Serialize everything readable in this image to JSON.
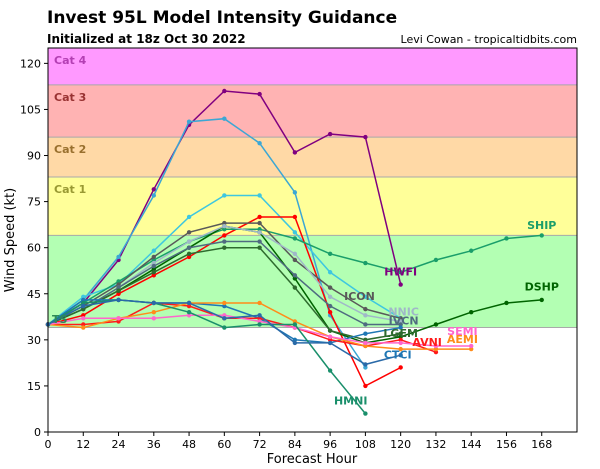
{
  "header": {
    "title": "Invest 95L Model Intensity Guidance",
    "subtitle": "Initialized at 18z Oct 30 2022",
    "credit": "Levi Cowan - tropicaltidbits.com"
  },
  "chart_data": {
    "type": "line",
    "title": "Invest 95L Model Intensity Guidance",
    "subtitle": "Initialized at 18z Oct 30 2022",
    "xlabel": "Forecast Hour",
    "ylabel": "Wind Speed (kt)",
    "xlim": [
      0,
      180
    ],
    "ylim": [
      0,
      125
    ],
    "xticks": [
      0,
      12,
      24,
      36,
      48,
      60,
      72,
      84,
      96,
      108,
      120,
      132,
      144,
      156,
      168
    ],
    "yticks": [
      0,
      15,
      30,
      45,
      60,
      75,
      90,
      105,
      120
    ],
    "grid": false,
    "bands": [
      {
        "name": "",
        "from": 0,
        "to": 34,
        "color": "#ffffff"
      },
      {
        "name": "",
        "from": 34,
        "to": 64,
        "color": "#b3ffb3"
      },
      {
        "name": "Cat 1",
        "from": 64,
        "to": 83,
        "color": "#ffff99",
        "label_color": "#999933"
      },
      {
        "name": "Cat 2",
        "from": 83,
        "to": 96,
        "color": "#ffd9a6",
        "label_color": "#99702e"
      },
      {
        "name": "Cat 3",
        "from": 96,
        "to": 113,
        "color": "#ffb3b3",
        "label_color": "#993333"
      },
      {
        "name": "Cat 4",
        "from": 113,
        "to": 125,
        "color": "#ff99ff",
        "label_color": "#b33fb3"
      }
    ],
    "series": [
      {
        "name": "HWFI",
        "color": "#800080",
        "label_pos": [
          120,
          51
        ],
        "x": [
          0,
          12,
          24,
          36,
          48,
          60,
          72,
          84,
          96,
          108,
          120
        ],
        "y": [
          35,
          42,
          56,
          79,
          100,
          111,
          110,
          91,
          97,
          96,
          48
        ]
      },
      {
        "name": "",
        "color": "#3ca7d4",
        "x": [
          0,
          12,
          24,
          36,
          48,
          60,
          72,
          84,
          96,
          108
        ],
        "y": [
          35,
          43,
          57,
          77,
          101,
          102,
          94,
          78,
          38,
          21
        ]
      },
      {
        "name": "",
        "color": "#3ec7e0",
        "x": [
          0,
          12,
          24,
          36,
          48,
          60,
          72,
          84,
          96,
          108,
          120
        ],
        "y": [
          35,
          44,
          48,
          59,
          70,
          77,
          77,
          65,
          52,
          44,
          37
        ]
      },
      {
        "name": "",
        "color": "#ff0000",
        "x": [
          0,
          12,
          24,
          36,
          48,
          60,
          72,
          84,
          96,
          108,
          120
        ],
        "y": [
          35,
          38,
          45,
          51,
          57,
          64,
          70,
          70,
          39,
          15,
          21
        ]
      },
      {
        "name": "SHIP",
        "color": "#1a9e6a",
        "label_pos": [
          168,
          66
        ],
        "x": [
          0,
          12,
          24,
          36,
          48,
          60,
          72,
          84,
          96,
          108,
          120,
          132,
          144,
          156,
          168
        ],
        "y": [
          35,
          42,
          49,
          56,
          62,
          66,
          66,
          63,
          58,
          55,
          52,
          56,
          59,
          63,
          64
        ]
      },
      {
        "name": "DSHP",
        "color": "#006400",
        "label_pos": [
          168,
          46
        ],
        "x": [
          0,
          12,
          24,
          36,
          48,
          60,
          72,
          84,
          96,
          108,
          120,
          132,
          144,
          156,
          168
        ],
        "y": [
          35,
          40,
          46,
          53,
          60,
          67,
          65,
          50,
          33,
          29,
          31,
          35,
          39,
          42,
          43
        ]
      },
      {
        "name": "ICON",
        "color": "#595959",
        "label_pos": [
          106,
          43
        ],
        "x": [
          0,
          12,
          24,
          36,
          48,
          60,
          72,
          84,
          96,
          108,
          120
        ],
        "y": [
          35,
          41,
          48,
          57,
          65,
          68,
          68,
          56,
          47,
          40,
          37
        ]
      },
      {
        "name": "NNIC",
        "color": "#a0b8c8",
        "label_pos": [
          121,
          38
        ],
        "x": [
          0,
          12,
          24,
          36,
          48,
          60,
          72,
          84,
          96,
          108,
          120
        ],
        "y": [
          35,
          40,
          47,
          55,
          62,
          67,
          65,
          58,
          44,
          38,
          36
        ]
      },
      {
        "name": "IVCN",
        "color": "#4f6b80",
        "label_pos": [
          121,
          35
        ],
        "x": [
          0,
          12,
          24,
          36,
          48,
          60,
          72,
          84,
          96,
          108,
          120
        ],
        "y": [
          35,
          40,
          47,
          54,
          60,
          62,
          62,
          51,
          41,
          35,
          35
        ]
      },
      {
        "name": "LGEM",
        "color": "#2e6b2e",
        "label_pos": [
          120,
          31
        ],
        "x": [
          0,
          12,
          24,
          36,
          48,
          60,
          72,
          84,
          96,
          108,
          120
        ],
        "y": [
          35,
          40,
          46,
          52,
          58,
          60,
          60,
          47,
          33,
          30,
          32
        ]
      },
      {
        "name": "CTCI",
        "color": "#1f77b4",
        "label_pos": [
          119,
          24
        ],
        "x": [
          0,
          12,
          24,
          36,
          48,
          60,
          72,
          84,
          96,
          108,
          120
        ],
        "y": [
          35,
          43,
          43,
          42,
          42,
          41,
          37,
          30,
          29,
          32,
          34
        ]
      },
      {
        "name": "AVNI",
        "color": "#ff1a1a",
        "label_pos": [
          129,
          28
        ],
        "x": [
          0,
          12,
          24,
          36,
          48,
          60,
          72,
          84,
          96,
          108,
          120,
          132
        ],
        "y": [
          35,
          35,
          36,
          42,
          41,
          37,
          37,
          34,
          30,
          28,
          30,
          26
        ]
      },
      {
        "name": "AEMI",
        "color": "#ff8c1a",
        "label_pos": [
          141,
          29
        ],
        "x": [
          0,
          12,
          24,
          36,
          48,
          60,
          72,
          84,
          96,
          108,
          120,
          132,
          144
        ],
        "y": [
          35,
          34,
          37,
          39,
          42,
          42,
          42,
          36,
          31,
          28,
          27,
          27,
          27
        ]
      },
      {
        "name": "SEMI",
        "color": "#ff66cc",
        "label_pos": [
          141,
          31.5
        ],
        "x": [
          0,
          12,
          24,
          36,
          48,
          60,
          72,
          84,
          96,
          108,
          120,
          132,
          144
        ],
        "y": [
          35,
          37,
          37,
          37,
          38,
          38,
          36,
          34,
          31,
          29,
          29,
          28,
          28
        ]
      },
      {
        "name": "HMNI",
        "color": "#1a8f6b",
        "label_pos": [
          103,
          9
        ],
        "x": [
          0,
          12,
          24,
          36,
          48,
          60,
          72,
          84,
          96,
          108
        ],
        "y": [
          35,
          42,
          43,
          42,
          39,
          34,
          35,
          35,
          20,
          6
        ]
      },
      {
        "name": "",
        "color": "#2a6aa8",
        "x": [
          0,
          12,
          24,
          36,
          48,
          60,
          72,
          84,
          96,
          108,
          120
        ],
        "y": [
          35,
          41,
          43,
          42,
          42,
          37,
          38,
          29,
          29,
          22,
          25
        ]
      }
    ]
  }
}
